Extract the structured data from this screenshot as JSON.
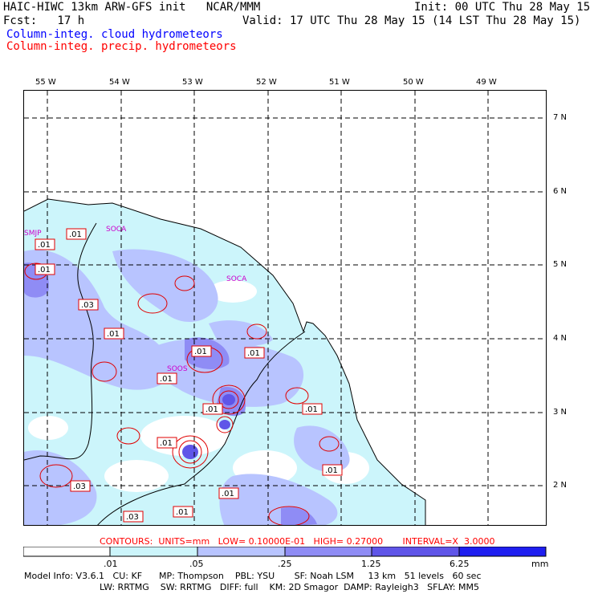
{
  "header": {
    "line1_left": "HAIC-HIWC 13km ARW-GFS init   NCAR/MMM",
    "line1_right": "Init: 00 UTC Thu 28 May 15",
    "line2_left": "Fcst:   17 h",
    "line2_right": "Valid: 17 UTC Thu 28 May 15 (14 LST Thu 28 May 15)",
    "legend_cloud": "Column-integ. cloud hydrometeors",
    "legend_precip": "Column-integ. precip. hydrometeors"
  },
  "axes": {
    "lon_labels": [
      "55 W",
      "54 W",
      "53 W",
      "52 W",
      "51 W",
      "50 W",
      "49 W"
    ],
    "lat_labels": [
      "7 N",
      "6 N",
      "5 N",
      "4 N",
      "3 N",
      "2 N"
    ]
  },
  "stations": [
    "SMJP",
    "SOCA",
    "SOCA",
    "SOOS"
  ],
  "contour_labels": [
    ".01",
    ".01",
    ".01",
    ".03",
    ".01",
    ".01",
    ".01",
    ".01",
    ".01",
    ".01",
    ".01",
    ".01",
    ".01",
    ".03",
    ".01",
    ".03"
  ],
  "contour_info": "CONTOURS:  UNITS=mm   LOW= 0.10000E-01   HIGH= 0.27000       INTERVAL=X  3.0000",
  "colorbar": {
    "labels": [
      ".01",
      ".05",
      ".25",
      "1.25",
      "6.25"
    ],
    "units": "mm",
    "colors": [
      "#ffffff",
      "#ccf5fb",
      "#b8c4ff",
      "#8f8cf5",
      "#5f55e8",
      "#1e1ef0"
    ]
  },
  "model_info": {
    "line1": "Model Info: V3.6.1   CU: KF      MP: Thompson    PBL: YSU       SF: Noah LSM     13 km   51 levels   60 sec",
    "line2": "LW: RRTMG    SW: RRTMG   DIFF: full    KM: 2D Smagor  DAMP: Rayleigh3   SFLAY: MM5"
  }
}
